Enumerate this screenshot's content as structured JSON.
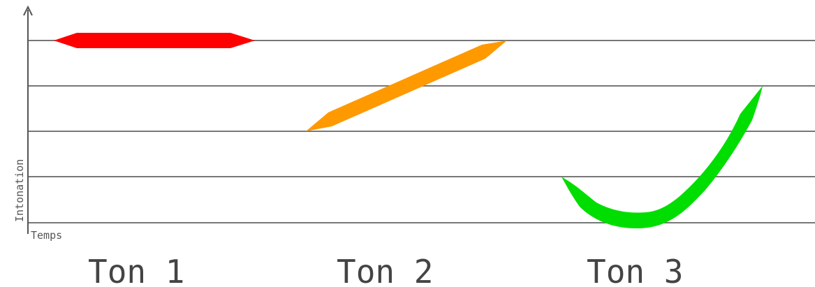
{
  "axes": {
    "y_label": "Intonation",
    "x_label": "Temps"
  },
  "levels": [
    5,
    4,
    3,
    2,
    1
  ],
  "tones": [
    {
      "label": "Ton 1",
      "color": "#ff0000",
      "contour": "high-level"
    },
    {
      "label": "Ton 2",
      "color": "#ff9900",
      "contour": "rising"
    },
    {
      "label": "Ton 3",
      "color": "#00dd00",
      "contour": "dipping"
    }
  ]
}
